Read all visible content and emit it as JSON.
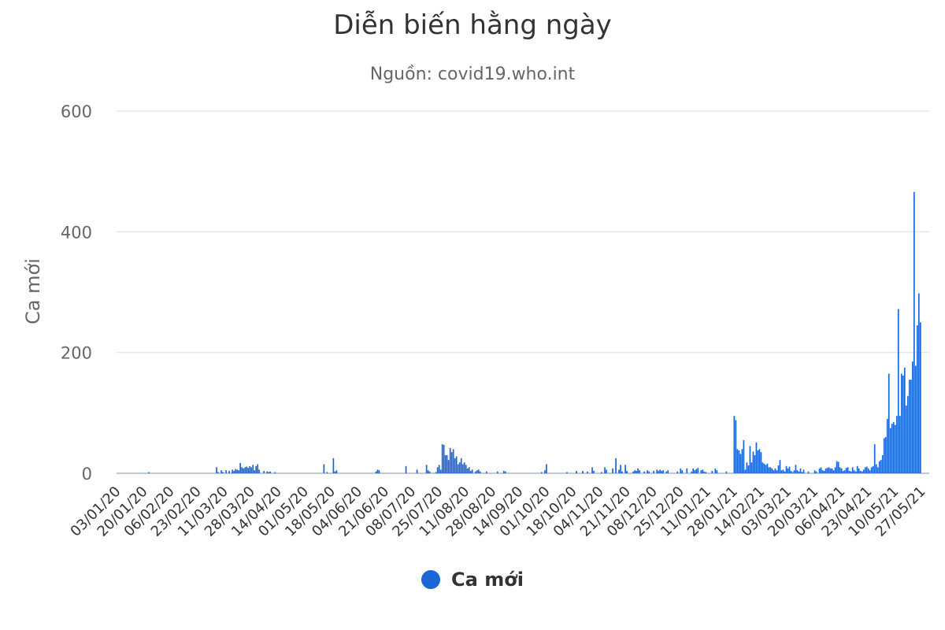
{
  "chart_data": {
    "type": "bar",
    "title": "Diễn biến hằng ngày",
    "subtitle": "Nguồn: covid19.who.int",
    "ylabel": "Ca mới",
    "ylim": [
      0,
      600
    ],
    "yticks": [
      0,
      200,
      400,
      600
    ],
    "x_start_date": "2020-01-03",
    "x_end_date": "2021-06-01",
    "xticks": [
      "03/01/20",
      "20/01/20",
      "06/02/20",
      "23/02/20",
      "11/03/20",
      "28/03/20",
      "14/04/20",
      "01/05/20",
      "18/05/20",
      "04/06/20",
      "21/06/20",
      "08/07/20",
      "25/07/20",
      "11/08/20",
      "28/08/20",
      "14/09/20",
      "01/10/20",
      "18/10/20",
      "04/11/20",
      "21/11/20",
      "08/12/20",
      "25/12/20",
      "11/01/21",
      "28/01/21",
      "14/02/21",
      "03/03/21",
      "20/03/21",
      "06/04/21",
      "23/04/21",
      "10/05/21",
      "27/05/21"
    ],
    "series": [
      {
        "name": "Ca mới",
        "color": "#1a66d9",
        "points": [
          [
            "2020-01-23",
            2
          ],
          [
            "2020-03-06",
            10
          ],
          [
            "2020-03-07",
            2
          ],
          [
            "2020-03-09",
            5
          ],
          [
            "2020-03-10",
            2
          ],
          [
            "2020-03-12",
            5
          ],
          [
            "2020-03-14",
            4
          ],
          [
            "2020-03-16",
            6
          ],
          [
            "2020-03-17",
            4
          ],
          [
            "2020-03-18",
            7
          ],
          [
            "2020-03-19",
            6
          ],
          [
            "2020-03-20",
            5
          ],
          [
            "2020-03-21",
            17
          ],
          [
            "2020-03-22",
            10
          ],
          [
            "2020-03-23",
            8
          ],
          [
            "2020-03-24",
            10
          ],
          [
            "2020-03-25",
            11
          ],
          [
            "2020-03-26",
            9
          ],
          [
            "2020-03-27",
            12
          ],
          [
            "2020-03-28",
            10
          ],
          [
            "2020-03-29",
            14
          ],
          [
            "2020-03-30",
            5
          ],
          [
            "2020-03-31",
            12
          ],
          [
            "2020-04-01",
            15
          ],
          [
            "2020-04-02",
            6
          ],
          [
            "2020-04-05",
            4
          ],
          [
            "2020-04-07",
            3
          ],
          [
            "2020-04-08",
            2
          ],
          [
            "2020-04-09",
            3
          ],
          [
            "2020-04-12",
            2
          ],
          [
            "2020-05-13",
            15
          ],
          [
            "2020-05-15",
            2
          ],
          [
            "2020-05-19",
            25
          ],
          [
            "2020-05-20",
            3
          ],
          [
            "2020-05-21",
            5
          ],
          [
            "2020-06-15",
            3
          ],
          [
            "2020-06-16",
            6
          ],
          [
            "2020-06-17",
            5
          ],
          [
            "2020-07-04",
            12
          ],
          [
            "2020-07-11",
            6
          ],
          [
            "2020-07-17",
            14
          ],
          [
            "2020-07-18",
            5
          ],
          [
            "2020-07-19",
            3
          ],
          [
            "2020-07-23",
            2
          ],
          [
            "2020-07-24",
            10
          ],
          [
            "2020-07-25",
            14
          ],
          [
            "2020-07-26",
            6
          ],
          [
            "2020-07-27",
            48
          ],
          [
            "2020-07-28",
            47
          ],
          [
            "2020-07-29",
            30
          ],
          [
            "2020-07-30",
            30
          ],
          [
            "2020-07-31",
            22
          ],
          [
            "2020-08-01",
            42
          ],
          [
            "2020-08-02",
            35
          ],
          [
            "2020-08-03",
            40
          ],
          [
            "2020-08-04",
            25
          ],
          [
            "2020-08-05",
            28
          ],
          [
            "2020-08-06",
            15
          ],
          [
            "2020-08-07",
            18
          ],
          [
            "2020-08-08",
            25
          ],
          [
            "2020-08-09",
            15
          ],
          [
            "2020-08-10",
            18
          ],
          [
            "2020-08-11",
            14
          ],
          [
            "2020-08-12",
            8
          ],
          [
            "2020-08-13",
            10
          ],
          [
            "2020-08-14",
            4
          ],
          [
            "2020-08-15",
            6
          ],
          [
            "2020-08-17",
            3
          ],
          [
            "2020-08-18",
            5
          ],
          [
            "2020-08-19",
            6
          ],
          [
            "2020-08-20",
            3
          ],
          [
            "2020-08-24",
            3
          ],
          [
            "2020-08-31",
            3
          ],
          [
            "2020-09-04",
            4
          ],
          [
            "2020-09-05",
            3
          ],
          [
            "2020-09-28",
            2
          ],
          [
            "2020-09-30",
            5
          ],
          [
            "2020-10-01",
            15
          ],
          [
            "2020-10-14",
            2
          ],
          [
            "2020-10-20",
            4
          ],
          [
            "2020-10-24",
            4
          ],
          [
            "2020-10-27",
            3
          ],
          [
            "2020-10-30",
            10
          ],
          [
            "2020-10-31",
            4
          ],
          [
            "2020-11-05",
            2
          ],
          [
            "2020-11-07",
            10
          ],
          [
            "2020-11-08",
            6
          ],
          [
            "2020-11-12",
            8
          ],
          [
            "2020-11-14",
            25
          ],
          [
            "2020-11-16",
            6
          ],
          [
            "2020-11-17",
            14
          ],
          [
            "2020-11-18",
            3
          ],
          [
            "2020-11-20",
            14
          ],
          [
            "2020-11-21",
            4
          ],
          [
            "2020-11-25",
            3
          ],
          [
            "2020-11-26",
            5
          ],
          [
            "2020-11-27",
            4
          ],
          [
            "2020-11-28",
            8
          ],
          [
            "2020-11-29",
            5
          ],
          [
            "2020-12-02",
            3
          ],
          [
            "2020-12-04",
            5
          ],
          [
            "2020-12-05",
            3
          ],
          [
            "2020-12-08",
            4
          ],
          [
            "2020-12-10",
            6
          ],
          [
            "2020-12-11",
            4
          ],
          [
            "2020-12-12",
            6
          ],
          [
            "2020-12-13",
            4
          ],
          [
            "2020-12-14",
            5
          ],
          [
            "2020-12-16",
            3
          ],
          [
            "2020-12-17",
            5
          ],
          [
            "2020-12-23",
            3
          ],
          [
            "2020-12-25",
            8
          ],
          [
            "2020-12-26",
            5
          ],
          [
            "2020-12-29",
            8
          ],
          [
            "2021-01-01",
            3
          ],
          [
            "2021-01-02",
            8
          ],
          [
            "2021-01-03",
            5
          ],
          [
            "2021-01-04",
            7
          ],
          [
            "2021-01-05",
            9
          ],
          [
            "2021-01-07",
            5
          ],
          [
            "2021-01-08",
            6
          ],
          [
            "2021-01-09",
            3
          ],
          [
            "2021-01-10",
            2
          ],
          [
            "2021-01-14",
            4
          ],
          [
            "2021-01-16",
            8
          ],
          [
            "2021-01-17",
            5
          ],
          [
            "2021-01-23",
            3
          ],
          [
            "2021-01-28",
            95
          ],
          [
            "2021-01-29",
            88
          ],
          [
            "2021-01-30",
            40
          ],
          [
            "2021-01-31",
            38
          ],
          [
            "2021-02-01",
            32
          ],
          [
            "2021-02-02",
            40
          ],
          [
            "2021-02-03",
            55
          ],
          [
            "2021-02-04",
            6
          ],
          [
            "2021-02-05",
            18
          ],
          [
            "2021-02-06",
            13
          ],
          [
            "2021-02-07",
            45
          ],
          [
            "2021-02-08",
            18
          ],
          [
            "2021-02-09",
            36
          ],
          [
            "2021-02-10",
            30
          ],
          [
            "2021-02-11",
            51
          ],
          [
            "2021-02-12",
            38
          ],
          [
            "2021-02-13",
            40
          ],
          [
            "2021-02-14",
            35
          ],
          [
            "2021-02-15",
            18
          ],
          [
            "2021-02-16",
            16
          ],
          [
            "2021-02-17",
            14
          ],
          [
            "2021-02-18",
            16
          ],
          [
            "2021-02-19",
            10
          ],
          [
            "2021-02-20",
            10
          ],
          [
            "2021-02-21",
            8
          ],
          [
            "2021-02-22",
            5
          ],
          [
            "2021-02-23",
            8
          ],
          [
            "2021-02-24",
            5
          ],
          [
            "2021-02-25",
            13
          ],
          [
            "2021-02-26",
            22
          ],
          [
            "2021-02-27",
            5
          ],
          [
            "2021-02-28",
            6
          ],
          [
            "2021-03-01",
            3
          ],
          [
            "2021-03-02",
            12
          ],
          [
            "2021-03-03",
            8
          ],
          [
            "2021-03-04",
            11
          ],
          [
            "2021-03-05",
            4
          ],
          [
            "2021-03-06",
            2
          ],
          [
            "2021-03-07",
            5
          ],
          [
            "2021-03-08",
            14
          ],
          [
            "2021-03-09",
            5
          ],
          [
            "2021-03-10",
            3
          ],
          [
            "2021-03-11",
            8
          ],
          [
            "2021-03-12",
            2
          ],
          [
            "2021-03-13",
            6
          ],
          [
            "2021-03-16",
            3
          ],
          [
            "2021-03-20",
            5
          ],
          [
            "2021-03-21",
            3
          ],
          [
            "2021-03-23",
            8
          ],
          [
            "2021-03-24",
            10
          ],
          [
            "2021-03-25",
            5
          ],
          [
            "2021-03-26",
            4
          ],
          [
            "2021-03-27",
            8
          ],
          [
            "2021-03-28",
            9
          ],
          [
            "2021-03-29",
            10
          ],
          [
            "2021-03-30",
            8
          ],
          [
            "2021-03-31",
            8
          ],
          [
            "2021-04-01",
            5
          ],
          [
            "2021-04-02",
            10
          ],
          [
            "2021-04-03",
            20
          ],
          [
            "2021-04-04",
            19
          ],
          [
            "2021-04-05",
            10
          ],
          [
            "2021-04-06",
            8
          ],
          [
            "2021-04-07",
            4
          ],
          [
            "2021-04-08",
            5
          ],
          [
            "2021-04-09",
            9
          ],
          [
            "2021-04-10",
            10
          ],
          [
            "2021-04-11",
            4
          ],
          [
            "2021-04-12",
            3
          ],
          [
            "2021-04-13",
            10
          ],
          [
            "2021-04-14",
            5
          ],
          [
            "2021-04-15",
            3
          ],
          [
            "2021-04-16",
            12
          ],
          [
            "2021-04-17",
            8
          ],
          [
            "2021-04-18",
            4
          ],
          [
            "2021-04-19",
            3
          ],
          [
            "2021-04-20",
            6
          ],
          [
            "2021-04-21",
            10
          ],
          [
            "2021-04-22",
            11
          ],
          [
            "2021-04-23",
            8
          ],
          [
            "2021-04-24",
            5
          ],
          [
            "2021-04-25",
            10
          ],
          [
            "2021-04-26",
            12
          ],
          [
            "2021-04-27",
            48
          ],
          [
            "2021-04-28",
            15
          ],
          [
            "2021-04-29",
            10
          ],
          [
            "2021-04-30",
            20
          ],
          [
            "2021-05-01",
            22
          ],
          [
            "2021-05-02",
            30
          ],
          [
            "2021-05-03",
            58
          ],
          [
            "2021-05-04",
            60
          ],
          [
            "2021-05-05",
            90
          ],
          [
            "2021-05-06",
            165
          ],
          [
            "2021-05-07",
            75
          ],
          [
            "2021-05-08",
            82
          ],
          [
            "2021-05-09",
            85
          ],
          [
            "2021-05-10",
            80
          ],
          [
            "2021-05-11",
            95
          ],
          [
            "2021-05-12",
            272
          ],
          [
            "2021-05-13",
            95
          ],
          [
            "2021-05-14",
            165
          ],
          [
            "2021-05-15",
            162
          ],
          [
            "2021-05-16",
            175
          ],
          [
            "2021-05-17",
            112
          ],
          [
            "2021-05-18",
            128
          ],
          [
            "2021-05-19",
            155
          ],
          [
            "2021-05-20",
            155
          ],
          [
            "2021-05-21",
            185
          ],
          [
            "2021-05-22",
            466
          ],
          [
            "2021-05-23",
            178
          ],
          [
            "2021-05-24",
            245
          ],
          [
            "2021-05-25",
            298
          ],
          [
            "2021-05-26",
            250
          ]
        ]
      }
    ],
    "grid": "horizontal",
    "legend": "bottom-center"
  }
}
